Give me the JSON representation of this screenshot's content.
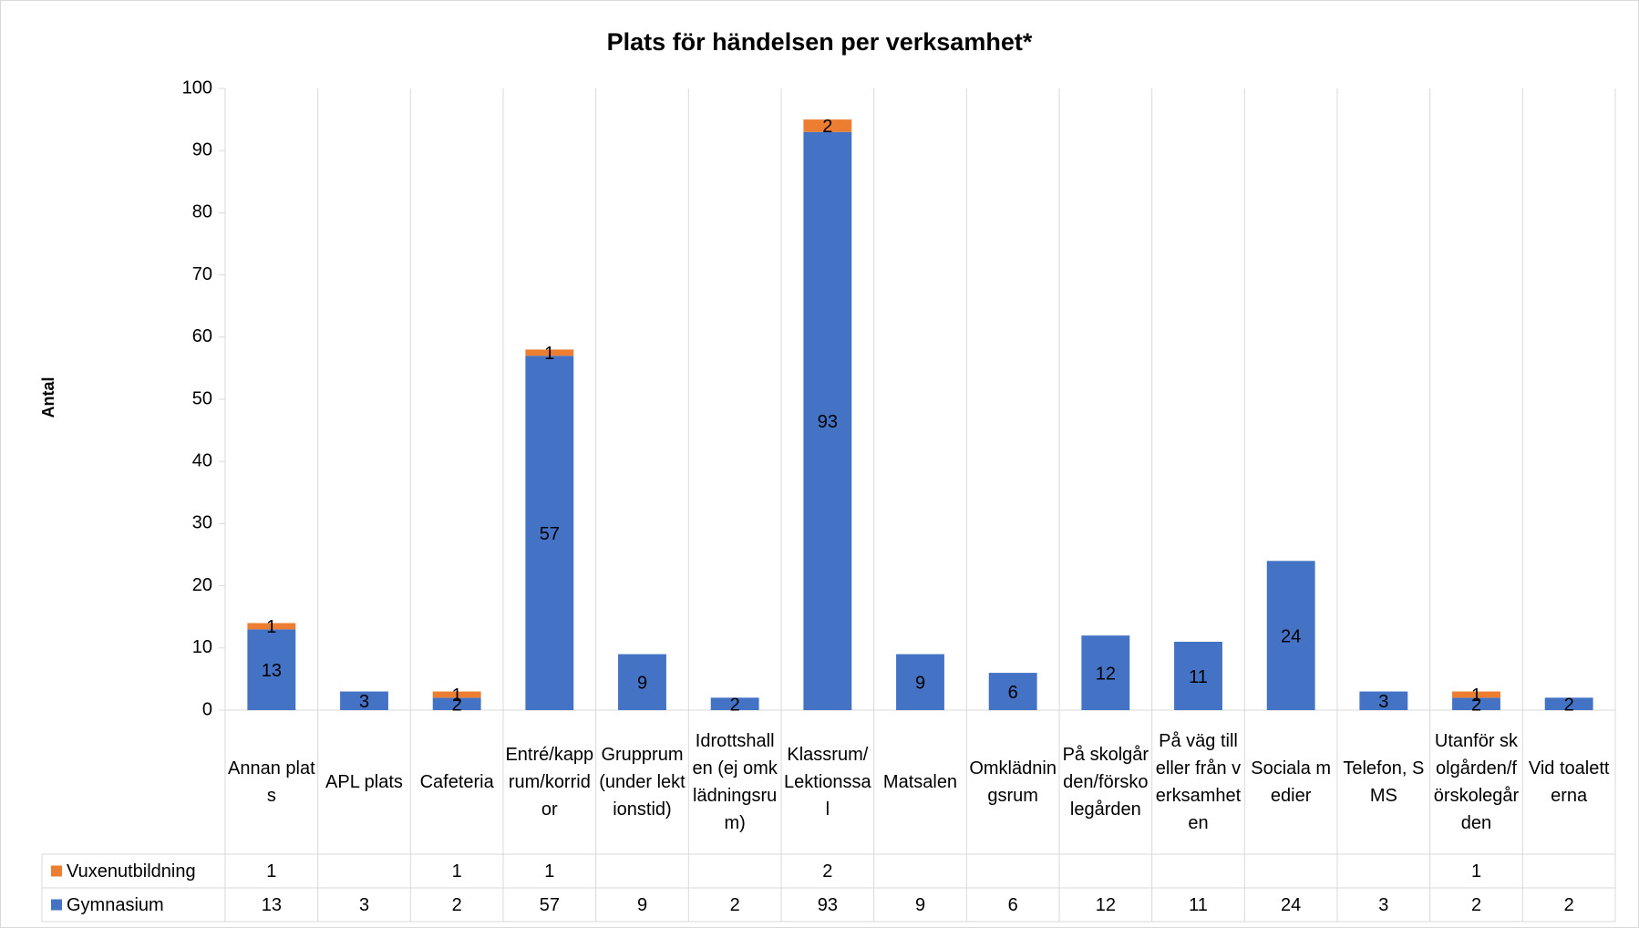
{
  "chart_data": {
    "type": "stacked_bar",
    "title": "Plats för händelsen per verksamhet*",
    "y_label": "Antal",
    "categories": [
      "Annan plats",
      "APL plats",
      "Cafeteria",
      "Entré/kapprum/korridor",
      "Grupprum (under lektionstid)",
      "Idrottshallen (ej omklädningsrum)",
      "Klassrum/Lektionssal",
      "Matsalen",
      "Omklädningsrum",
      "På skolgården/förskolegården",
      "På väg till eller från verksamheten",
      "Sociala medier",
      "Telefon, SMS",
      "Utanför skolgården/förskolegården",
      "Vid toaletterna"
    ],
    "series": [
      {
        "name": "Gymnasium",
        "color": "#4472c4",
        "values": [
          13,
          3,
          2,
          57,
          9,
          2,
          93,
          9,
          6,
          12,
          11,
          24,
          3,
          2,
          2
        ]
      },
      {
        "name": "Vuxenutbildning",
        "color": "#ed7d31",
        "values": [
          1,
          null,
          1,
          1,
          null,
          null,
          2,
          null,
          null,
          null,
          null,
          null,
          null,
          1,
          null
        ]
      }
    ],
    "ylim": [
      0,
      100
    ],
    "yticks": [
      0,
      10,
      20,
      30,
      40,
      50,
      60,
      70,
      80,
      90,
      100
    ],
    "data_table": true
  }
}
